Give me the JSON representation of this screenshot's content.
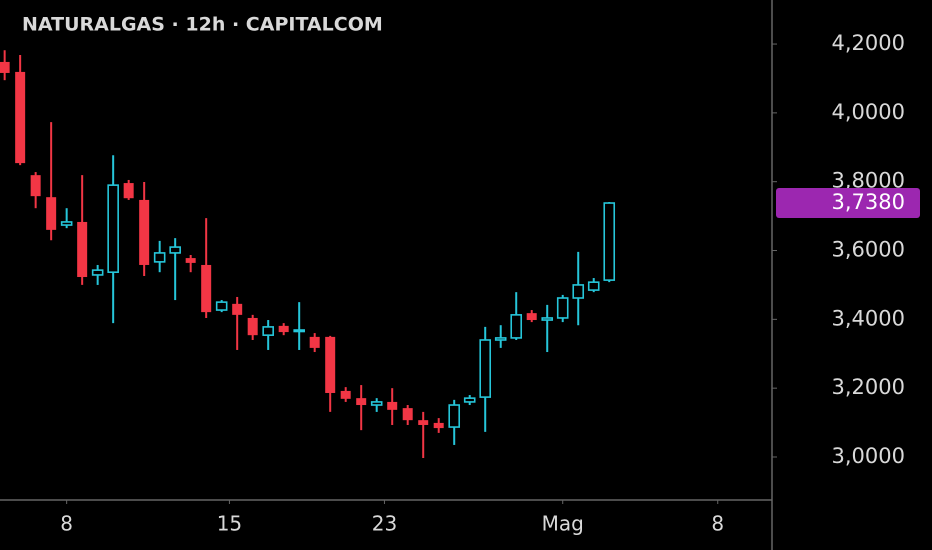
{
  "chart_data": {
    "type": "candlestick",
    "title": "NATURALGAS · 12h · CAPITALCOM",
    "x": [
      0,
      1,
      2,
      3,
      4,
      5,
      6,
      7,
      8,
      9,
      10,
      11,
      12,
      13,
      14,
      15,
      16,
      17,
      18,
      19,
      20,
      21,
      22,
      23,
      24,
      25,
      26,
      27,
      28,
      29,
      30,
      31,
      32,
      33,
      34,
      35,
      36,
      37,
      38,
      39
    ],
    "open": [
      4.148,
      4.119,
      3.819,
      3.755,
      3.674,
      3.683,
      3.529,
      3.537,
      3.796,
      3.747,
      3.567,
      3.593,
      3.578,
      3.558,
      3.427,
      3.445,
      3.404,
      3.354,
      3.381,
      3.366,
      3.349,
      3.349,
      3.192,
      3.171,
      3.151,
      3.16,
      3.142,
      3.107,
      3.099,
      3.087,
      3.16,
      3.174,
      3.34,
      3.346,
      3.418,
      3.398,
      3.404,
      3.462,
      3.485,
      3.514
    ],
    "high": [
      4.182,
      4.168,
      3.828,
      3.973,
      3.723,
      3.819,
      3.558,
      3.877,
      3.805,
      3.799,
      3.628,
      3.636,
      3.587,
      3.694,
      3.456,
      3.465,
      3.413,
      3.398,
      3.389,
      3.45,
      3.36,
      3.352,
      3.203,
      3.209,
      3.171,
      3.2,
      3.151,
      3.131,
      3.113,
      3.166,
      3.18,
      3.378,
      3.383,
      3.479,
      3.427,
      3.442,
      3.471,
      3.596,
      3.52,
      3.741
    ],
    "low": [
      4.095,
      3.848,
      3.723,
      3.63,
      3.665,
      3.5,
      3.5,
      3.389,
      3.747,
      3.526,
      3.537,
      3.456,
      3.537,
      3.404,
      3.421,
      3.311,
      3.34,
      3.311,
      3.354,
      3.311,
      3.305,
      3.131,
      3.16,
      3.078,
      3.131,
      3.093,
      3.093,
      2.997,
      3.07,
      3.035,
      3.151,
      3.073,
      3.317,
      3.34,
      3.392,
      3.305,
      3.392,
      3.383,
      3.479,
      3.508
    ],
    "close": [
      4.116,
      3.854,
      3.758,
      3.66,
      3.683,
      3.523,
      3.543,
      3.79,
      3.752,
      3.558,
      3.593,
      3.61,
      3.564,
      3.421,
      3.45,
      3.413,
      3.354,
      3.378,
      3.363,
      3.369,
      3.317,
      3.186,
      3.169,
      3.151,
      3.16,
      3.137,
      3.107,
      3.093,
      3.084,
      3.151,
      3.171,
      3.34,
      3.346,
      3.413,
      3.398,
      3.404,
      3.462,
      3.5,
      3.508,
      3.738
    ],
    "up_color": "#26c6da",
    "down_color": "#f23645",
    "xlim": [
      -0.3,
      49.5
    ],
    "xticks": [
      {
        "value": 4,
        "label": "8"
      },
      {
        "value": 14.5,
        "label": "15"
      },
      {
        "value": 24.5,
        "label": "23"
      },
      {
        "value": 36,
        "label": "Mag"
      },
      {
        "value": 46,
        "label": "8"
      }
    ],
    "ylim": [
      2.875,
      4.328
    ],
    "yticks": [
      {
        "value": 3.0,
        "label": "3,0000"
      },
      {
        "value": 3.2,
        "label": "3,2000"
      },
      {
        "value": 3.4,
        "label": "3,4000"
      },
      {
        "value": 3.6,
        "label": "3,6000"
      },
      {
        "value": 3.8,
        "label": "3,8000"
      },
      {
        "value": 4.0,
        "label": "4,0000"
      },
      {
        "value": 4.2,
        "label": "4,2000"
      }
    ],
    "last_price": {
      "value": 3.738,
      "label": "3,7380",
      "color": "#9c27b0"
    }
  }
}
